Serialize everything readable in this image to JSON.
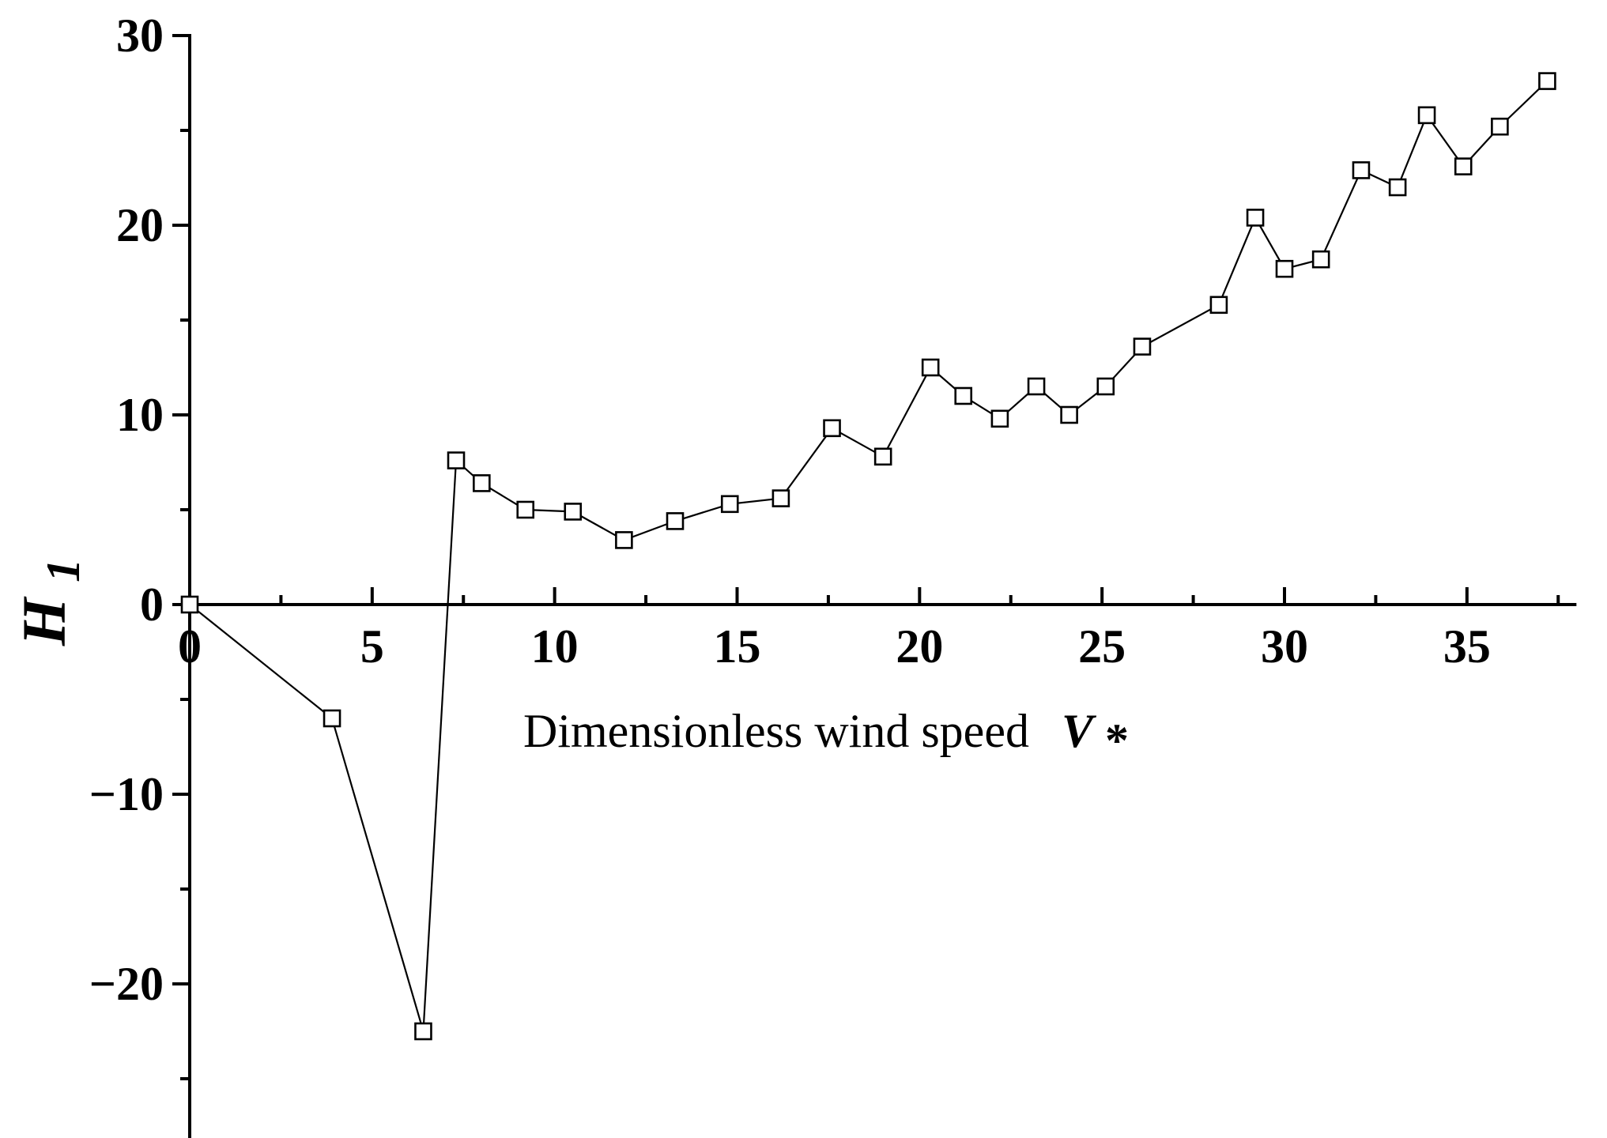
{
  "chart_data": {
    "type": "line",
    "xlabel": "Dimensionless wind speed",
    "xlabel_symbol": "V",
    "xlabel_subscript": "*",
    "ylabel": "H",
    "ylabel_subscript": "1",
    "xlim": [
      0,
      38
    ],
    "ylim": [
      -28,
      30
    ],
    "x_ticks": [
      0,
      5,
      10,
      15,
      20,
      25,
      30,
      35
    ],
    "x_tick_labels": [
      "0",
      "5",
      "10",
      "15",
      "20",
      "25",
      "30",
      "35"
    ],
    "y_ticks": [
      -20,
      -10,
      0,
      10,
      20,
      30
    ],
    "y_tick_labels": [
      "−20",
      "−10",
      "0",
      "10",
      "20",
      "30"
    ],
    "grid": false,
    "series": [
      {
        "marker": "square-open",
        "color": "#000000",
        "x": [
          0,
          3.9,
          6.4,
          7.3,
          8.0,
          9.2,
          10.5,
          11.9,
          13.3,
          14.8,
          16.2,
          17.6,
          19.0,
          20.3,
          21.2,
          22.2,
          23.2,
          24.1,
          25.1,
          26.1,
          28.2,
          29.2,
          30.0,
          31.0,
          32.1,
          33.1,
          33.9,
          34.9,
          35.9,
          37.2
        ],
        "y": [
          0,
          -6.0,
          -22.5,
          7.6,
          6.4,
          5.0,
          4.9,
          3.4,
          4.4,
          5.3,
          5.6,
          9.3,
          7.8,
          12.5,
          11.0,
          9.8,
          11.5,
          10.0,
          11.5,
          13.6,
          15.8,
          20.4,
          17.7,
          18.2,
          22.9,
          22.0,
          25.8,
          23.1,
          25.2,
          27.6
        ]
      }
    ]
  }
}
